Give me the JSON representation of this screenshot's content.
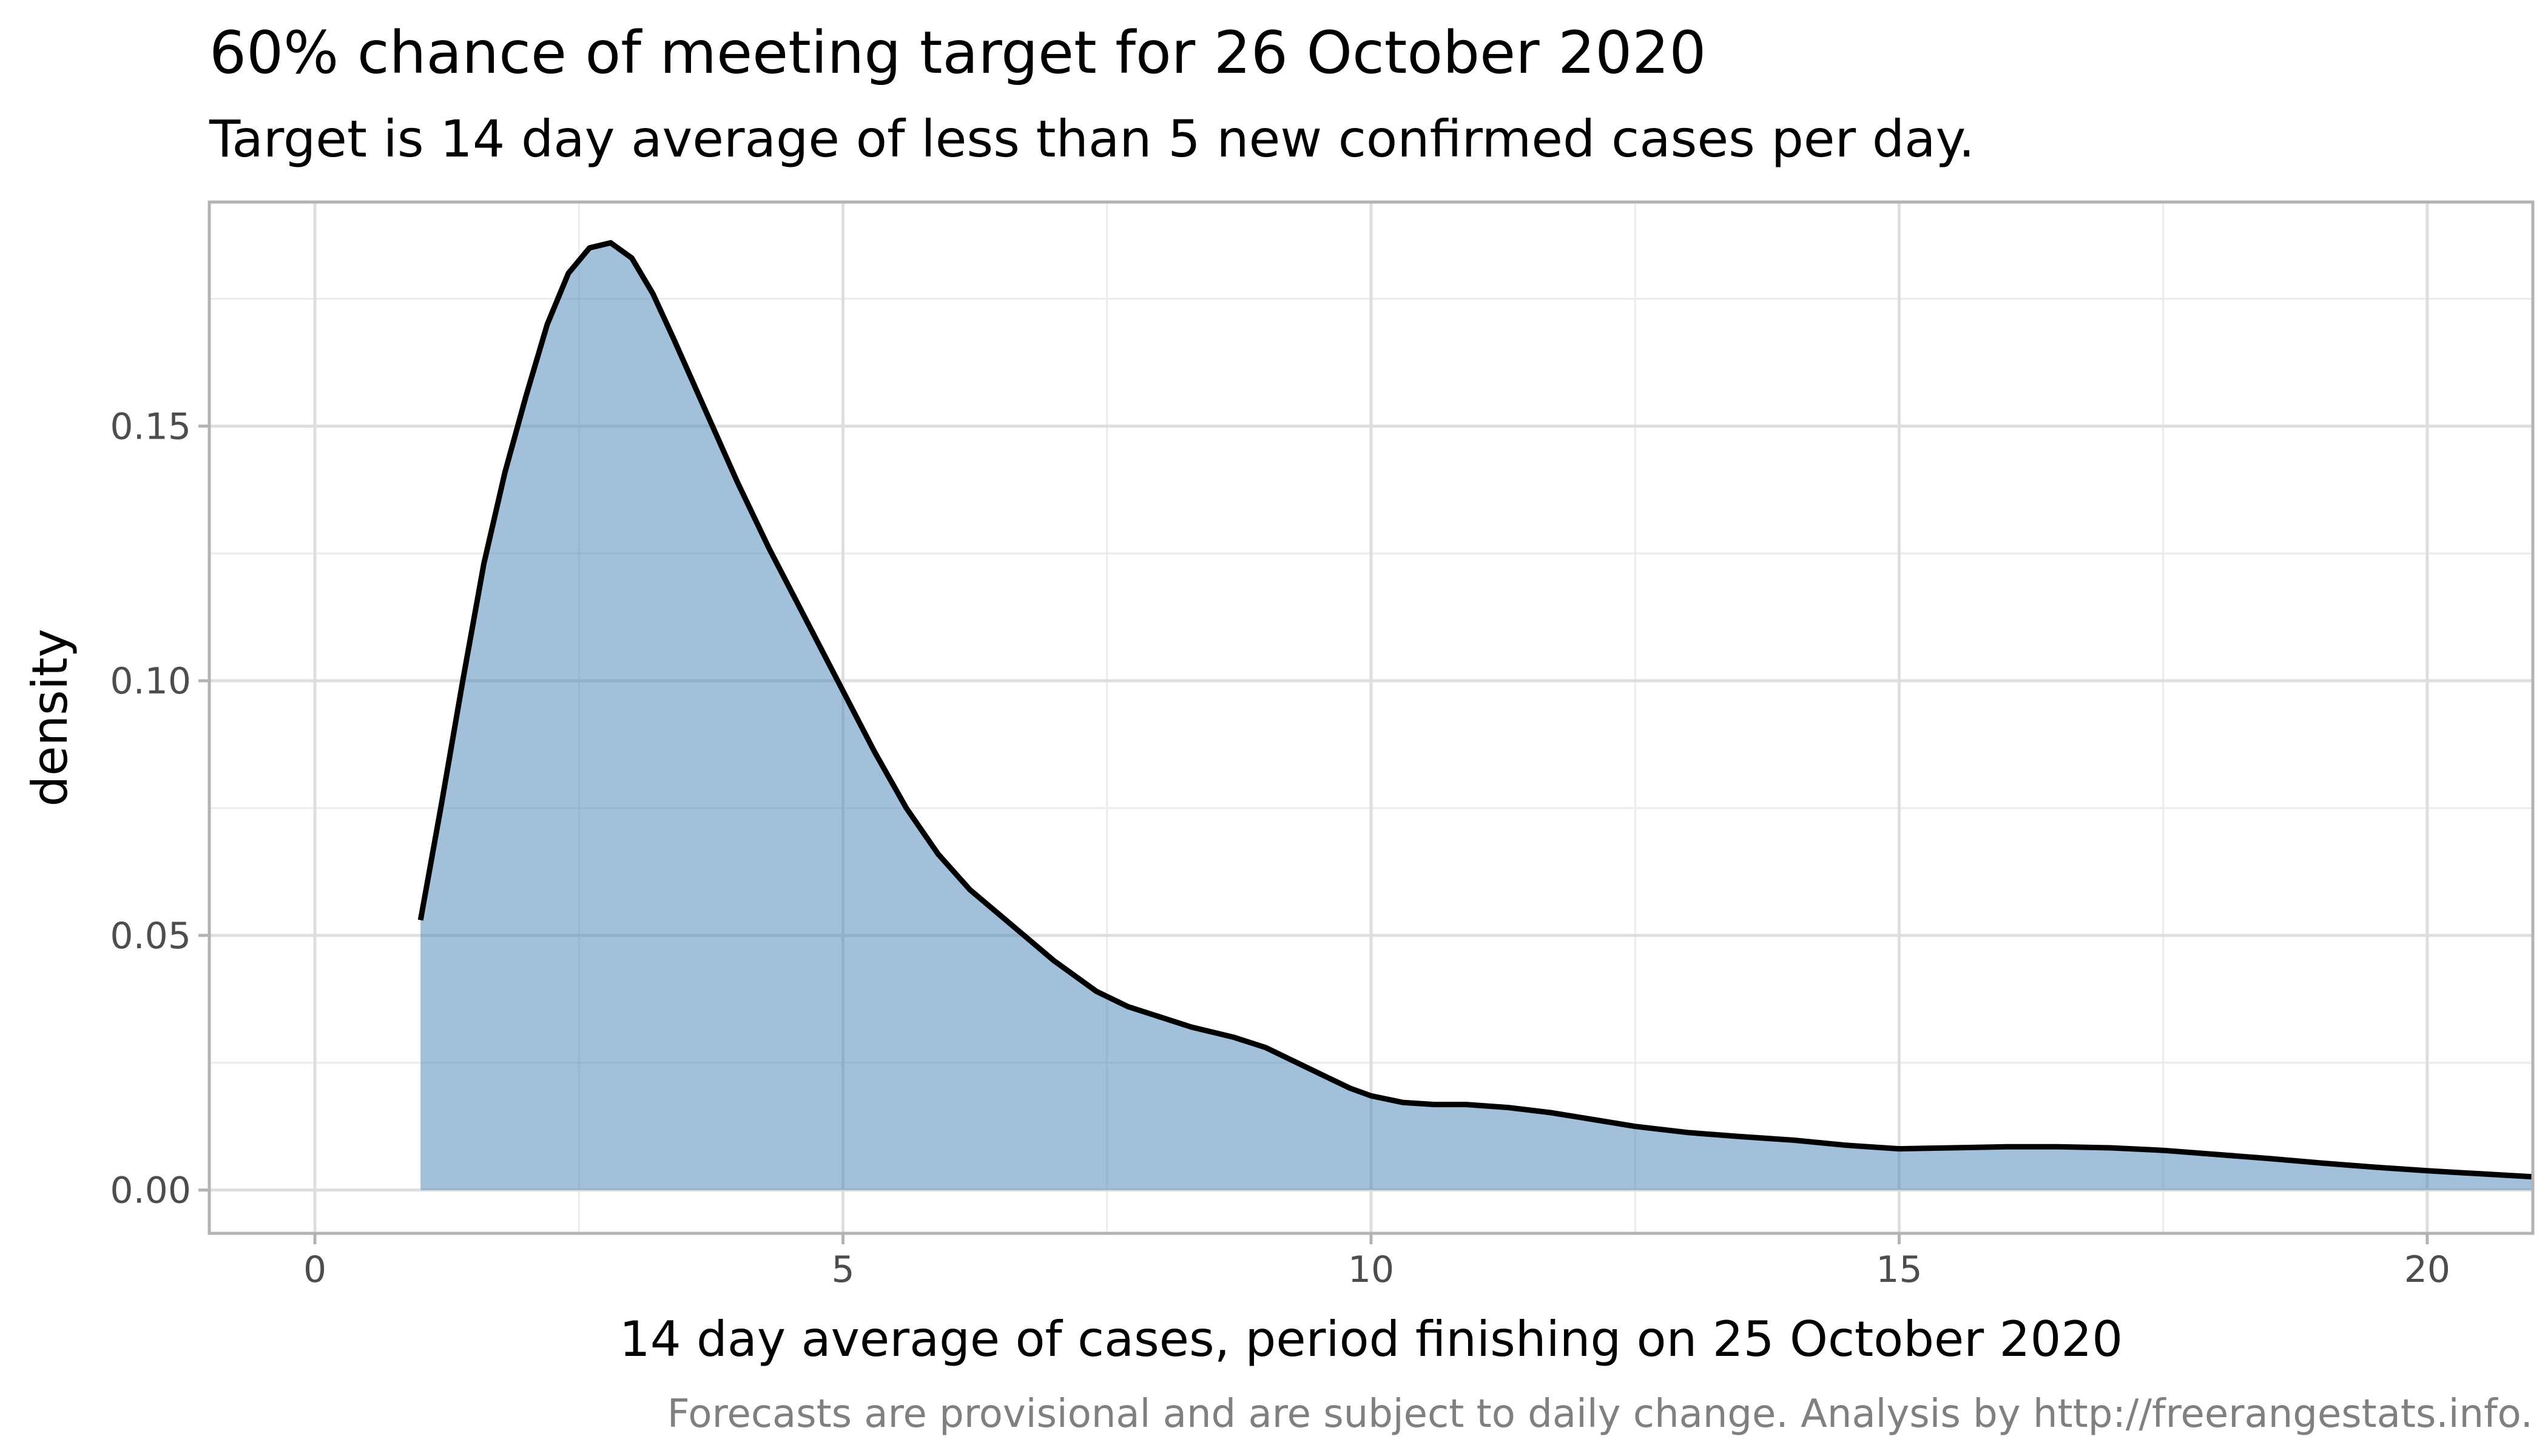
{
  "chart_data": {
    "type": "area",
    "title": "60% chance of meeting target for 26 October 2020",
    "subtitle": "Target is 14 day average of less than 5 new confirmed cases per day.",
    "xlabel": "14 day average of cases, period finishing on 25 October 2020",
    "ylabel": "density",
    "caption": "Forecasts are provisional and are subject to daily change. Analysis by http://freerangestats.info.",
    "xlim": [
      -1,
      21
    ],
    "ylim": [
      -0.0085,
      0.194
    ],
    "x_ticks": [
      0,
      5,
      10,
      15,
      20
    ],
    "x_tick_labels": [
      "0",
      "5",
      "10",
      "15",
      "20"
    ],
    "y_ticks": [
      0.0,
      0.05,
      0.1,
      0.15
    ],
    "y_tick_labels": [
      "0.00",
      "0.05",
      "0.10",
      "0.15"
    ],
    "grid": true,
    "fill_color": "#4682b4",
    "fill_opacity": 0.5,
    "line_color": "#000000",
    "x": [
      1.0,
      1.2,
      1.4,
      1.6,
      1.8,
      2.0,
      2.2,
      2.4,
      2.6,
      2.8,
      3.0,
      3.2,
      3.4,
      3.7,
      4.0,
      4.3,
      4.6,
      5.0,
      5.3,
      5.6,
      5.9,
      6.2,
      6.6,
      7.0,
      7.4,
      7.7,
      8.0,
      8.3,
      8.7,
      9.0,
      9.3,
      9.6,
      9.8,
      10.0,
      10.3,
      10.6,
      10.9,
      11.3,
      11.7,
      12.0,
      12.5,
      13.0,
      13.5,
      14.0,
      14.5,
      15.0,
      15.5,
      16.0,
      16.5,
      17.0,
      17.5,
      18.0,
      18.5,
      19.0,
      19.5,
      20.0,
      20.5,
      21.0
    ],
    "y": [
      0.053,
      0.076,
      0.1,
      0.123,
      0.141,
      0.156,
      0.17,
      0.18,
      0.185,
      0.186,
      0.183,
      0.176,
      0.167,
      0.153,
      0.139,
      0.126,
      0.114,
      0.098,
      0.086,
      0.075,
      0.066,
      0.059,
      0.052,
      0.045,
      0.039,
      0.036,
      0.034,
      0.032,
      0.03,
      0.028,
      0.025,
      0.022,
      0.02,
      0.0185,
      0.0172,
      0.0168,
      0.0168,
      0.0162,
      0.0152,
      0.0142,
      0.0125,
      0.0113,
      0.0105,
      0.0098,
      0.0088,
      0.0081,
      0.0083,
      0.0085,
      0.0085,
      0.0083,
      0.0078,
      0.007,
      0.0062,
      0.0053,
      0.0045,
      0.0038,
      0.0032,
      0.0026
    ]
  }
}
